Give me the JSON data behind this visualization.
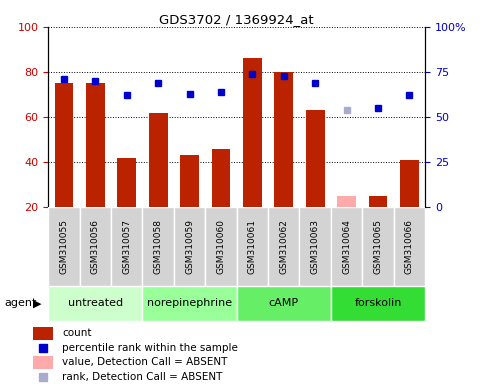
{
  "title": "GDS3702 / 1369924_at",
  "samples": [
    "GSM310055",
    "GSM310056",
    "GSM310057",
    "GSM310058",
    "GSM310059",
    "GSM310060",
    "GSM310061",
    "GSM310062",
    "GSM310063",
    "GSM310064",
    "GSM310065",
    "GSM310066"
  ],
  "bar_heights": [
    75,
    75,
    42,
    62,
    43,
    46,
    86,
    80,
    63,
    25,
    25,
    41
  ],
  "bar_absent": [
    false,
    false,
    false,
    false,
    false,
    false,
    false,
    false,
    false,
    true,
    false,
    false
  ],
  "bar_color_normal": "#bb2200",
  "bar_color_absent": "#ffaaaa",
  "dot_values": [
    71,
    70,
    62,
    69,
    63,
    64,
    74,
    73,
    69,
    54,
    55,
    62
  ],
  "dot_absent": [
    false,
    false,
    false,
    false,
    false,
    false,
    false,
    false,
    false,
    true,
    false,
    false
  ],
  "dot_color_normal": "#0000cc",
  "dot_color_absent": "#aaaacc",
  "ylim_left": [
    20,
    100
  ],
  "yticks_left": [
    20,
    40,
    60,
    80,
    100
  ],
  "yticks_right_vals": [
    0,
    25,
    50,
    75,
    100
  ],
  "ytick_right_labels": [
    "0",
    "25",
    "50",
    "75",
    "100%"
  ],
  "agent_groups": [
    {
      "label": "untreated",
      "start": 0,
      "end": 3,
      "color": "#ccffcc"
    },
    {
      "label": "norepinephrine",
      "start": 3,
      "end": 6,
      "color": "#99ff99"
    },
    {
      "label": "cAMP",
      "start": 6,
      "end": 9,
      "color": "#66ee66"
    },
    {
      "label": "forskolin",
      "start": 9,
      "end": 12,
      "color": "#33dd33"
    }
  ],
  "legend_items": [
    {
      "label": "count",
      "color": "#bb2200",
      "type": "rect"
    },
    {
      "label": "percentile rank within the sample",
      "color": "#0000cc",
      "type": "square"
    },
    {
      "label": "value, Detection Call = ABSENT",
      "color": "#ffaaaa",
      "type": "rect"
    },
    {
      "label": "rank, Detection Call = ABSENT",
      "color": "#aaaacc",
      "type": "square"
    }
  ],
  "left_tick_color": "#cc0000",
  "right_tick_color": "#0000cc",
  "sample_box_color": "#d3d3d3",
  "agent_label": "agent"
}
